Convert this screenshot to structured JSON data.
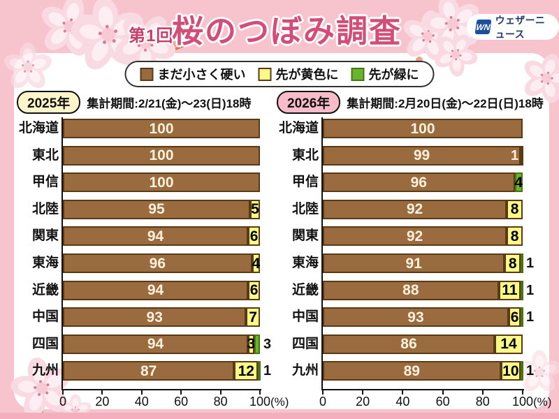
{
  "page": {
    "title_prefix": "第1回",
    "title": "桜のつぼみ調査",
    "logo": {
      "icon_label": "WN",
      "name": "ウェザーニュース"
    },
    "colors": {
      "brown": "#9a6b3e",
      "yellow": "#fbf987",
      "green": "#69b42d",
      "accent_pink": "#d24d78",
      "background_pink": "#f7c3cd",
      "logo_blue": "#1a4e9e"
    }
  },
  "legend": {
    "items": [
      {
        "key": "brown",
        "label": "まだ小さく硬い"
      },
      {
        "key": "yellow",
        "label": "先が黄色に"
      },
      {
        "key": "green",
        "label": "先が緑に"
      }
    ]
  },
  "chart_data": [
    {
      "type": "bar",
      "orientation": "horizontal",
      "stacked": true,
      "year": "2025年",
      "period": "集計期間:2/21(金)〜23(日)18時",
      "xlabel": "(%)",
      "xlim": [
        0,
        100
      ],
      "xticks": [
        0,
        20,
        40,
        60,
        80,
        100
      ],
      "series_names": [
        "まだ小さく硬い",
        "先が黄色に",
        "先が緑に"
      ],
      "rows": [
        {
          "region": "北海道",
          "segments": [
            {
              "type": "brown",
              "value": 100,
              "label_placement": "inside"
            }
          ]
        },
        {
          "region": "東北",
          "segments": [
            {
              "type": "brown",
              "value": 100,
              "label_placement": "inside"
            }
          ]
        },
        {
          "region": "甲信",
          "segments": [
            {
              "type": "brown",
              "value": 100,
              "label_placement": "inside"
            }
          ]
        },
        {
          "region": "北陸",
          "segments": [
            {
              "type": "brown",
              "value": 95,
              "label_placement": "inside"
            },
            {
              "type": "yellow",
              "value": 5,
              "label_placement": "inside"
            }
          ]
        },
        {
          "region": "関東",
          "segments": [
            {
              "type": "brown",
              "value": 94,
              "label_placement": "inside"
            },
            {
              "type": "yellow",
              "value": 6,
              "label_placement": "inside"
            }
          ]
        },
        {
          "region": "東海",
          "segments": [
            {
              "type": "brown",
              "value": 96,
              "label_placement": "inside"
            },
            {
              "type": "yellow",
              "value": 4,
              "label_placement": "inside"
            }
          ]
        },
        {
          "region": "近畿",
          "segments": [
            {
              "type": "brown",
              "value": 94,
              "label_placement": "inside"
            },
            {
              "type": "yellow",
              "value": 6,
              "label_placement": "inside"
            }
          ]
        },
        {
          "region": "中国",
          "segments": [
            {
              "type": "brown",
              "value": 93,
              "label_placement": "inside"
            },
            {
              "type": "yellow",
              "value": 7,
              "label_placement": "inside"
            }
          ]
        },
        {
          "region": "四国",
          "segments": [
            {
              "type": "brown",
              "value": 94,
              "label_placement": "inside"
            },
            {
              "type": "yellow",
              "value": 3,
              "label_placement": "inside"
            },
            {
              "type": "green",
              "value": 3,
              "label_placement": "after"
            }
          ]
        },
        {
          "region": "九州",
          "segments": [
            {
              "type": "brown",
              "value": 87,
              "label_placement": "inside"
            },
            {
              "type": "yellow",
              "value": 12,
              "label_placement": "inside"
            },
            {
              "type": "green",
              "value": 1,
              "label_placement": "after"
            }
          ]
        }
      ]
    },
    {
      "type": "bar",
      "orientation": "horizontal",
      "stacked": true,
      "year": "2026年",
      "period": "集計期間:2月20日(金)〜22日(日)18時",
      "xlabel": "(%)",
      "xlim": [
        0,
        100
      ],
      "xticks": [
        0,
        20,
        40,
        60,
        80,
        100
      ],
      "series_names": [
        "まだ小さく硬い",
        "先が黄色に",
        "先が緑に"
      ],
      "rows": [
        {
          "region": "北海道",
          "segments": [
            {
              "type": "brown",
              "value": 100,
              "label_placement": "inside"
            }
          ]
        },
        {
          "region": "東北",
          "segments": [
            {
              "type": "brown",
              "value": 99,
              "label_placement": "inside"
            },
            {
              "type": "yellow",
              "value": 1,
              "label_placement": "before"
            }
          ]
        },
        {
          "region": "甲信",
          "segments": [
            {
              "type": "brown",
              "value": 96,
              "label_placement": "inside"
            },
            {
              "type": "green",
              "value": 4,
              "label_placement": "inside"
            }
          ]
        },
        {
          "region": "北陸",
          "segments": [
            {
              "type": "brown",
              "value": 92,
              "label_placement": "inside"
            },
            {
              "type": "yellow",
              "value": 8,
              "label_placement": "inside"
            }
          ]
        },
        {
          "region": "関東",
          "segments": [
            {
              "type": "brown",
              "value": 92,
              "label_placement": "inside"
            },
            {
              "type": "yellow",
              "value": 8,
              "label_placement": "inside"
            }
          ]
        },
        {
          "region": "東海",
          "segments": [
            {
              "type": "brown",
              "value": 91,
              "label_placement": "inside"
            },
            {
              "type": "yellow",
              "value": 8,
              "label_placement": "inside"
            },
            {
              "type": "green",
              "value": 1,
              "label_placement": "after"
            }
          ]
        },
        {
          "region": "近畿",
          "segments": [
            {
              "type": "brown",
              "value": 88,
              "label_placement": "inside"
            },
            {
              "type": "yellow",
              "value": 11,
              "label_placement": "inside"
            },
            {
              "type": "green",
              "value": 1,
              "label_placement": "after"
            }
          ]
        },
        {
          "region": "中国",
          "segments": [
            {
              "type": "brown",
              "value": 93,
              "label_placement": "inside"
            },
            {
              "type": "yellow",
              "value": 6,
              "label_placement": "inside"
            },
            {
              "type": "green",
              "value": 1,
              "label_placement": "after"
            }
          ]
        },
        {
          "region": "四国",
          "segments": [
            {
              "type": "brown",
              "value": 86,
              "label_placement": "inside"
            },
            {
              "type": "yellow",
              "value": 14,
              "label_placement": "inside"
            }
          ]
        },
        {
          "region": "九州",
          "segments": [
            {
              "type": "brown",
              "value": 89,
              "label_placement": "inside"
            },
            {
              "type": "yellow",
              "value": 10,
              "label_placement": "inside"
            },
            {
              "type": "green",
              "value": 1,
              "label_placement": "after"
            }
          ]
        }
      ]
    }
  ]
}
